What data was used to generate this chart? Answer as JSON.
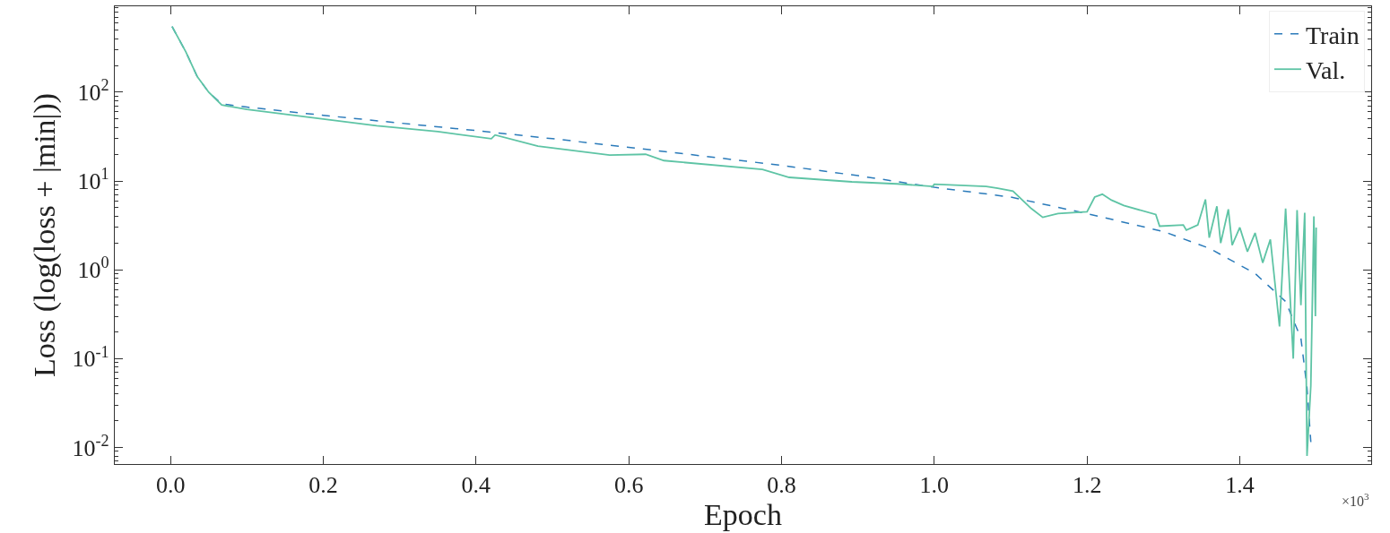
{
  "chart_data": {
    "type": "line",
    "xlabel": "Epoch",
    "ylabel": "Loss (log(loss + |min|))",
    "log": "y",
    "grid": false,
    "legend": "top right",
    "marker": "none",
    "xlim": [
      -0.073,
      1.572
    ],
    "xticks": [
      {
        "value": 0,
        "label": "0.0"
      },
      0.2,
      0.4,
      0.6,
      0.8,
      {
        "value": 1,
        "label": "1.0"
      },
      1.2,
      1.4
    ],
    "ylim": [
      0.0065,
      930
    ],
    "yticks": [
      {
        "value": 0.01,
        "label": "10$^{-2}$"
      },
      {
        "value": 0.1,
        "label": "10$^{-1}$"
      },
      {
        "value": 1,
        "label": "10$^{0}$"
      },
      {
        "value": 10,
        "label": "10$^{1}$"
      },
      {
        "value": 100,
        "label": "10$^{2}$"
      }
    ],
    "annotations": [
      "×10$^{3}$"
    ],
    "series": [
      {
        "name": "Train",
        "color": "#2b7bba",
        "line_style": "dashed",
        "x": [
          0.002,
          0.02,
          0.035,
          0.05,
          0.067,
          0.1,
          0.2,
          0.3,
          0.4,
          0.5,
          0.6,
          0.7,
          0.8,
          0.9,
          1.0,
          1.1,
          1.2,
          1.3,
          1.36,
          1.42,
          1.46,
          1.48,
          1.488,
          1.493
        ],
        "values": [
          550,
          285,
          150,
          100,
          74,
          68,
          55,
          45,
          37,
          30,
          24,
          19,
          15,
          11.5,
          8.5,
          6.6,
          4.3,
          2.7,
          1.75,
          0.91,
          0.44,
          0.17,
          0.047,
          0.0115
        ]
      },
      {
        "name": "Val.",
        "color": "#5ec4a5",
        "line_style": "solid",
        "x": [
          0.002,
          0.02,
          0.035,
          0.05,
          0.067,
          0.1,
          0.2,
          0.27,
          0.35,
          0.42,
          0.425,
          0.481,
          0.575,
          0.622,
          0.646,
          0.775,
          0.81,
          0.892,
          0.951,
          0.998,
          1.0,
          1.068,
          1.083,
          1.103,
          1.127,
          1.142,
          1.162,
          1.2,
          1.21,
          1.22,
          1.232,
          1.248,
          1.29,
          1.295,
          1.326,
          1.33,
          1.345,
          1.355,
          1.36,
          1.37,
          1.375,
          1.385,
          1.39,
          1.4,
          1.41,
          1.42,
          1.43,
          1.44,
          1.452,
          1.46,
          1.47,
          1.475,
          1.48,
          1.485,
          1.488,
          1.493,
          1.497,
          1.499,
          1.5
        ],
        "values": [
          550,
          285,
          150,
          100,
          72,
          64,
          50,
          42,
          36,
          30,
          33,
          24.7,
          19.6,
          20,
          17,
          13.5,
          11,
          9.8,
          9.3,
          8.7,
          9.2,
          8.7,
          8.3,
          7.7,
          4.9,
          3.9,
          4.3,
          4.5,
          6.6,
          7.1,
          6.1,
          5.3,
          4.2,
          3.1,
          3.2,
          2.8,
          3.2,
          6.2,
          2.3,
          5.2,
          2.0,
          4.8,
          1.9,
          3.0,
          1.6,
          2.6,
          1.2,
          2.2,
          0.23,
          4.9,
          0.1,
          4.7,
          0.4,
          4.4,
          0.008,
          0.05,
          4.0,
          0.3,
          3.0
        ]
      }
    ]
  }
}
